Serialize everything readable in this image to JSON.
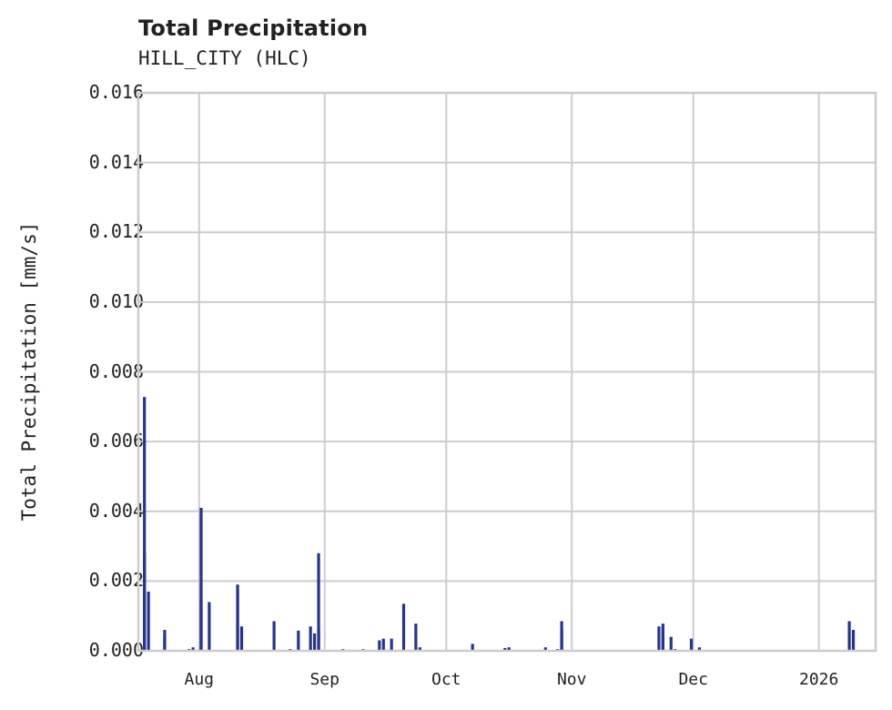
{
  "header": {
    "title": "Total Precipitation",
    "subtitle": "HILL_CITY (HLC)"
  },
  "colors": {
    "bar": "#26348f",
    "grid": "#cccccc",
    "frame": "#cccccc",
    "text": "#222222"
  },
  "chart_data": {
    "type": "bar",
    "title": "Total Precipitation",
    "subtitle": "HILL_CITY (HLC)",
    "xlabel": "",
    "ylabel": "Total Precipitation [mm/s]",
    "ylim": [
      0,
      0.016
    ],
    "xlim": [
      "2025-07-17",
      "2026-01-15"
    ],
    "grid": true,
    "legend": null,
    "yticks": [
      "0.000",
      "0.002",
      "0.004",
      "0.006",
      "0.008",
      "0.010",
      "0.012",
      "0.014",
      "0.016"
    ],
    "xticks": [
      {
        "label": "Aug",
        "date": "2025-08-01"
      },
      {
        "label": "Sep",
        "date": "2025-09-01"
      },
      {
        "label": "Oct",
        "date": "2025-10-01"
      },
      {
        "label": "Nov",
        "date": "2025-11-01"
      },
      {
        "label": "Dec",
        "date": "2025-12-01"
      },
      {
        "label": "2026",
        "date": "2026-01-01"
      }
    ],
    "series": [
      {
        "name": "Total Precipitation",
        "points": [
          {
            "date": "2025-07-18",
            "value": 0.0028
          },
          {
            "date": "2025-07-18",
            "value": 0.00728
          },
          {
            "date": "2025-07-19",
            "value": 0.0017
          },
          {
            "date": "2025-07-23",
            "value": 0.0004
          },
          {
            "date": "2025-07-23",
            "value": 0.0006
          },
          {
            "date": "2025-07-29",
            "value": 5e-05
          },
          {
            "date": "2025-07-30",
            "value": 0.0001
          },
          {
            "date": "2025-08-01",
            "value": 0.0041
          },
          {
            "date": "2025-08-01",
            "value": 0.0015
          },
          {
            "date": "2025-08-03",
            "value": 0.0014
          },
          {
            "date": "2025-08-10",
            "value": 0.0019
          },
          {
            "date": "2025-08-10",
            "value": 0.00175
          },
          {
            "date": "2025-08-11",
            "value": 0.0007
          },
          {
            "date": "2025-08-19",
            "value": 0.00085
          },
          {
            "date": "2025-08-23",
            "value": 5e-05
          },
          {
            "date": "2025-08-25",
            "value": 0.00058
          },
          {
            "date": "2025-08-28",
            "value": 0.0001
          },
          {
            "date": "2025-08-28",
            "value": 0.0007
          },
          {
            "date": "2025-08-29",
            "value": 0.0005
          },
          {
            "date": "2025-08-30",
            "value": 0.0028
          },
          {
            "date": "2025-08-30",
            "value": 0.0007
          },
          {
            "date": "2025-09-05",
            "value": 5e-05
          },
          {
            "date": "2025-09-10",
            "value": 5e-05
          },
          {
            "date": "2025-09-14",
            "value": 0.0003
          },
          {
            "date": "2025-09-15",
            "value": 0.00035
          },
          {
            "date": "2025-09-17",
            "value": 0.00035
          },
          {
            "date": "2025-09-20",
            "value": 0.00135
          },
          {
            "date": "2025-09-23",
            "value": 0.00078
          },
          {
            "date": "2025-09-24",
            "value": 0.0001
          },
          {
            "date": "2025-10-07",
            "value": 0.0002
          },
          {
            "date": "2025-10-15",
            "value": 8e-05
          },
          {
            "date": "2025-10-16",
            "value": 0.0001
          },
          {
            "date": "2025-10-25",
            "value": 0.0001
          },
          {
            "date": "2025-10-28",
            "value": 5e-05
          },
          {
            "date": "2025-10-29",
            "value": 0.00085
          },
          {
            "date": "2025-10-29",
            "value": 0.0006
          },
          {
            "date": "2025-11-22",
            "value": 0.0007
          },
          {
            "date": "2025-11-23",
            "value": 0.00078
          },
          {
            "date": "2025-11-23",
            "value": 0.0007
          },
          {
            "date": "2025-11-25",
            "value": 0.0004
          },
          {
            "date": "2025-11-26",
            "value": 5e-05
          },
          {
            "date": "2025-11-30",
            "value": 0.00035
          },
          {
            "date": "2025-12-02",
            "value": 0.0001
          },
          {
            "date": "2026-01-08",
            "value": 0.00085
          },
          {
            "date": "2026-01-09",
            "value": 0.0006
          }
        ]
      }
    ]
  }
}
